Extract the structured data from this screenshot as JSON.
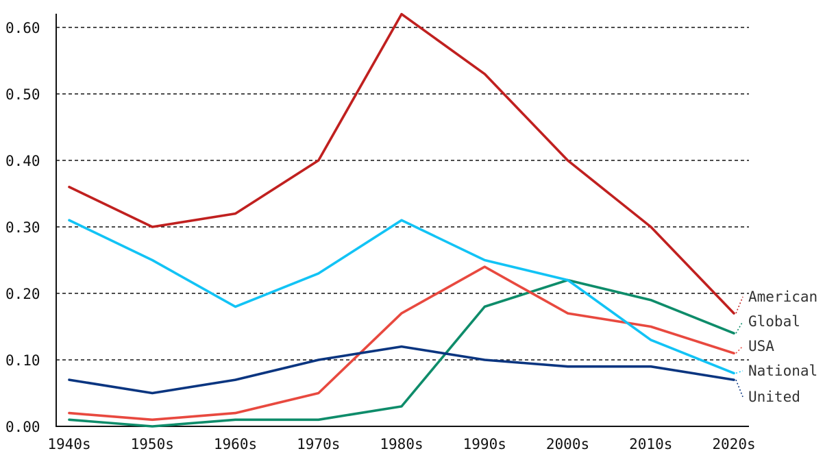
{
  "chart_data": {
    "type": "line",
    "title": "",
    "xlabel": "",
    "ylabel": "",
    "categories": [
      "1940s",
      "1950s",
      "1960s",
      "1970s",
      "1980s",
      "1990s",
      "2000s",
      "2010s",
      "2020s"
    ],
    "ylim": [
      0,
      0.62
    ],
    "yticks": [
      "0.00",
      "0.10",
      "0.20",
      "0.30",
      "0.40",
      "0.50",
      "0.60"
    ],
    "grid": true,
    "legend": "direct labels at right end of each line",
    "series": [
      {
        "name": "American",
        "color": "#c0201f",
        "values": [
          0.36,
          0.3,
          0.32,
          0.4,
          0.62,
          0.53,
          0.4,
          0.3,
          0.17
        ]
      },
      {
        "name": "Global",
        "color": "#0e8c6a",
        "values": [
          0.01,
          0.0,
          0.01,
          0.01,
          0.03,
          0.18,
          0.22,
          0.19,
          0.14
        ]
      },
      {
        "name": "USA",
        "color": "#e8493f",
        "values": [
          0.02,
          0.01,
          0.02,
          0.05,
          0.17,
          0.24,
          0.17,
          0.15,
          0.11
        ]
      },
      {
        "name": "National",
        "color": "#12c3f5",
        "values": [
          0.31,
          0.25,
          0.18,
          0.23,
          0.31,
          0.25,
          0.22,
          0.13,
          0.08
        ]
      },
      {
        "name": "United",
        "color": "#0a3580",
        "values": [
          0.07,
          0.05,
          0.07,
          0.1,
          0.12,
          0.1,
          0.09,
          0.09,
          0.07
        ]
      }
    ]
  }
}
